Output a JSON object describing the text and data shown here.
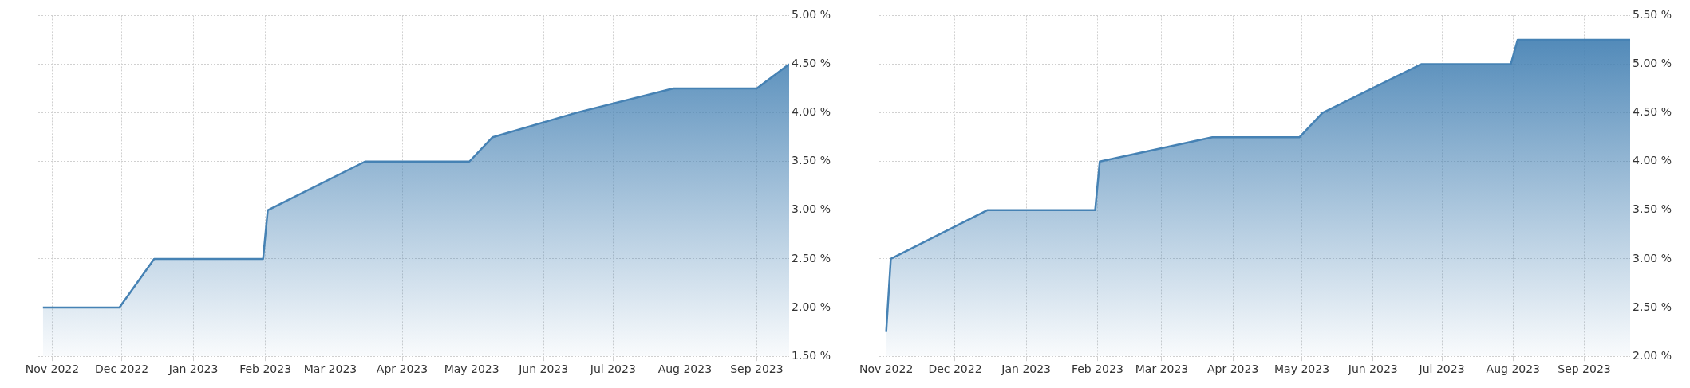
{
  "chart_data": [
    {
      "type": "area",
      "x": [
        "2022-10-28",
        "2022-11-30",
        "2022-12-15",
        "2023-01-31",
        "2023-02-02",
        "2023-03-16",
        "2023-04-30",
        "2023-05-10",
        "2023-06-15",
        "2023-07-27",
        "2023-09-01",
        "2023-09-15"
      ],
      "series": [
        {
          "color": "#4682b4",
          "values": [
            2.0,
            2.0,
            2.5,
            2.5,
            3.0,
            3.5,
            3.5,
            3.75,
            4.0,
            4.25,
            4.25,
            4.5
          ]
        }
      ],
      "xlim": [
        "2022-10-26",
        "2023-09-15"
      ],
      "xticks": [
        {
          "value": "2022-11-01",
          "label": "Nov 2022"
        },
        {
          "value": "2022-12-01",
          "label": "Dec 2022"
        },
        {
          "value": "2023-01-01",
          "label": "Jan 2023"
        },
        {
          "value": "2023-02-01",
          "label": "Feb 2023"
        },
        {
          "value": "2023-03-01",
          "label": "Mar 2023"
        },
        {
          "value": "2023-04-01",
          "label": "Apr 2023"
        },
        {
          "value": "2023-05-01",
          "label": "May 2023"
        },
        {
          "value": "2023-06-01",
          "label": "Jun 2023"
        },
        {
          "value": "2023-07-01",
          "label": "Jul 2023"
        },
        {
          "value": "2023-08-01",
          "label": "Aug 2023"
        },
        {
          "value": "2023-09-01",
          "label": "Sep 2023"
        }
      ],
      "ylim": [
        1.5,
        5.0
      ],
      "yticks": [
        {
          "value": 1.5,
          "label": "1.50 %"
        },
        {
          "value": 2.0,
          "label": "2.00 %"
        },
        {
          "value": 2.5,
          "label": "2.50 %"
        },
        {
          "value": 3.0,
          "label": "3.00 %"
        },
        {
          "value": 3.5,
          "label": "3.50 %"
        },
        {
          "value": 4.0,
          "label": "4.00 %"
        },
        {
          "value": 4.5,
          "label": "4.50 %"
        },
        {
          "value": 5.0,
          "label": "5.00 %"
        }
      ],
      "grid": true
    },
    {
      "type": "area",
      "x": [
        "2022-11-01",
        "2022-11-03",
        "2022-12-15",
        "2023-01-31",
        "2023-02-02",
        "2023-03-23",
        "2023-04-30",
        "2023-05-10",
        "2023-06-22",
        "2023-07-31",
        "2023-08-03",
        "2023-09-21"
      ],
      "series": [
        {
          "color": "#4682b4",
          "values": [
            2.25,
            3.0,
            3.5,
            3.5,
            4.0,
            4.25,
            4.25,
            4.5,
            5.0,
            5.0,
            5.25,
            5.25
          ]
        }
      ],
      "xlim": [
        "2022-10-29",
        "2023-09-21"
      ],
      "xticks": [
        {
          "value": "2022-11-01",
          "label": "Nov 2022"
        },
        {
          "value": "2022-12-01",
          "label": "Dec 2022"
        },
        {
          "value": "2023-01-01",
          "label": "Jan 2023"
        },
        {
          "value": "2023-02-01",
          "label": "Feb 2023"
        },
        {
          "value": "2023-03-01",
          "label": "Mar 2023"
        },
        {
          "value": "2023-04-01",
          "label": "Apr 2023"
        },
        {
          "value": "2023-05-01",
          "label": "May 2023"
        },
        {
          "value": "2023-06-01",
          "label": "Jun 2023"
        },
        {
          "value": "2023-07-01",
          "label": "Jul 2023"
        },
        {
          "value": "2023-08-01",
          "label": "Aug 2023"
        },
        {
          "value": "2023-09-01",
          "label": "Sep 2023"
        }
      ],
      "ylim": [
        2.0,
        5.5
      ],
      "yticks": [
        {
          "value": 2.0,
          "label": "2.00 %"
        },
        {
          "value": 2.5,
          "label": "2.50 %"
        },
        {
          "value": 3.0,
          "label": "3.00 %"
        },
        {
          "value": 3.5,
          "label": "3.50 %"
        },
        {
          "value": 4.0,
          "label": "4.00 %"
        },
        {
          "value": 4.5,
          "label": "4.50 %"
        },
        {
          "value": 5.0,
          "label": "5.00 %"
        },
        {
          "value": 5.5,
          "label": "5.50 %"
        }
      ],
      "grid": true
    }
  ]
}
